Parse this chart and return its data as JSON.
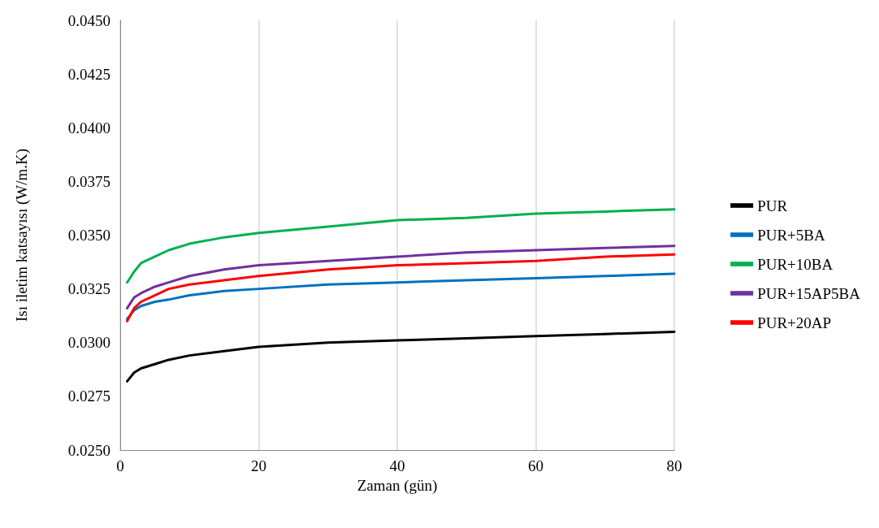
{
  "chart_data": {
    "type": "line",
    "xlabel": "Zaman (gün)",
    "ylabel": "Isı iletim katsayısı (W/m.K)",
    "x": [
      1,
      2,
      3,
      5,
      7,
      10,
      15,
      20,
      30,
      40,
      50,
      60,
      70,
      80
    ],
    "series": [
      {
        "name": "PUR",
        "color": "#000000",
        "values": [
          0.0282,
          0.0286,
          0.0288,
          0.029,
          0.0292,
          0.0294,
          0.0296,
          0.0298,
          0.03,
          0.0301,
          0.0302,
          0.0303,
          0.0304,
          0.0305
        ]
      },
      {
        "name": "PUR+5BA",
        "color": "#0070c0",
        "values": [
          0.0311,
          0.0315,
          0.0317,
          0.0319,
          0.032,
          0.0322,
          0.0324,
          0.0325,
          0.0327,
          0.0328,
          0.0329,
          0.033,
          0.0331,
          0.0332
        ]
      },
      {
        "name": "PUR+10BA",
        "color": "#00b050",
        "values": [
          0.0328,
          0.0333,
          0.0337,
          0.034,
          0.0343,
          0.0346,
          0.0349,
          0.0351,
          0.0354,
          0.0357,
          0.0358,
          0.036,
          0.0361,
          0.0362
        ]
      },
      {
        "name": "PUR+15AP5BA",
        "color": "#7030a0",
        "values": [
          0.0316,
          0.0321,
          0.0323,
          0.0326,
          0.0328,
          0.0331,
          0.0334,
          0.0336,
          0.0338,
          0.034,
          0.0342,
          0.0343,
          0.0344,
          0.0345
        ]
      },
      {
        "name": "PUR+20AP",
        "color": "#ff0000",
        "values": [
          0.031,
          0.0316,
          0.0319,
          0.0322,
          0.0325,
          0.0327,
          0.0329,
          0.0331,
          0.0334,
          0.0336,
          0.0337,
          0.0338,
          0.034,
          0.0341
        ]
      }
    ],
    "xlim": [
      0,
      80
    ],
    "xticks": [
      0,
      20,
      40,
      60,
      80
    ],
    "ylim": [
      0.025,
      0.045
    ],
    "yticks": [
      {
        "value": 0.025,
        "label": "0.0250"
      },
      {
        "value": 0.0275,
        "label": "0.0275"
      },
      {
        "value": 0.03,
        "label": "0.0300"
      },
      {
        "value": 0.0325,
        "label": "0.0325"
      },
      {
        "value": 0.035,
        "label": "0.0350"
      },
      {
        "value": 0.0375,
        "label": "0.0375"
      },
      {
        "value": 0.04,
        "label": "0.0400"
      },
      {
        "value": 0.0425,
        "label": "0.0425"
      },
      {
        "value": 0.045,
        "label": "0.0450"
      }
    ],
    "grid": "x",
    "legend": "right",
    "marker": "none",
    "line_style": "solid"
  }
}
